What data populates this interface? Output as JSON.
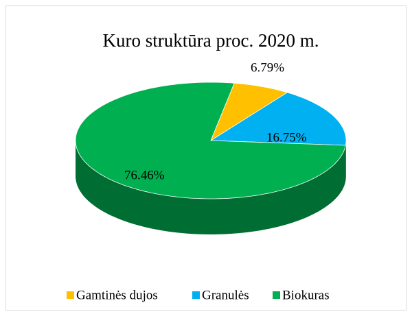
{
  "chart_data": {
    "type": "pie",
    "title": "Kuro struktūra proc. 2020 m.",
    "categories": [
      "Gamtinės dujos",
      "Granulės",
      "Biokuras"
    ],
    "values": [
      6.79,
      16.75,
      76.46
    ],
    "value_labels": [
      "6.79%",
      "16.75%",
      "76.46%"
    ],
    "colors": [
      "#ffc000",
      "#00b0f0",
      "#00b050"
    ],
    "legend": "bottom"
  }
}
